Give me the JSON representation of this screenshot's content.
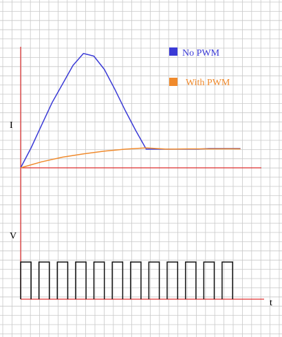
{
  "chart_data": {
    "type": "line",
    "title": "",
    "current_axis_label": "I",
    "voltage_axis_label": "V",
    "time_axis_label": "t",
    "grid": true,
    "legend": "top-right",
    "colors": {
      "grid": "#c8c8c8",
      "axis": "#e03030",
      "no_pwm": "#3a3ad6",
      "with_pwm": "#f08a2c",
      "pulse": "#111111"
    },
    "current_series": [
      {
        "name": "No PWM",
        "points": [
          [
            0,
            0
          ],
          [
            1,
            1.5
          ],
          [
            2,
            3.2
          ],
          [
            3,
            4.9
          ],
          [
            4,
            6.3
          ],
          [
            5,
            7.7
          ],
          [
            6,
            8.6
          ],
          [
            7,
            8.4
          ],
          [
            8,
            7.4
          ],
          [
            9,
            5.9
          ],
          [
            10,
            4.3
          ],
          [
            11,
            2.8
          ],
          [
            12,
            1.4
          ],
          [
            13,
            1.4
          ],
          [
            14,
            1.4
          ],
          [
            15,
            1.4
          ],
          [
            16,
            1.4
          ],
          [
            17,
            1.4
          ],
          [
            18,
            1.45
          ],
          [
            19,
            1.45
          ],
          [
            20,
            1.45
          ],
          [
            21,
            1.45
          ]
        ]
      },
      {
        "name": "With PWM",
        "points": [
          [
            0,
            0
          ],
          [
            2,
            0.45
          ],
          [
            4,
            0.8
          ],
          [
            6,
            1.05
          ],
          [
            8,
            1.25
          ],
          [
            10,
            1.4
          ],
          [
            12,
            1.5
          ],
          [
            13,
            1.45
          ],
          [
            14,
            1.4
          ],
          [
            16,
            1.42
          ],
          [
            18,
            1.42
          ],
          [
            20,
            1.43
          ],
          [
            21,
            1.42
          ]
        ]
      }
    ],
    "voltage_pulses": {
      "on": [
        [
          0,
          1
        ],
        [
          1.75,
          2.75
        ],
        [
          3.5,
          4.5
        ],
        [
          5.25,
          6.25
        ],
        [
          7,
          8
        ],
        [
          8.75,
          9.75
        ],
        [
          10.5,
          11.5
        ],
        [
          12.25,
          13.25
        ],
        [
          14,
          15
        ],
        [
          15.75,
          16.75
        ],
        [
          17.5,
          18.5
        ],
        [
          19.25,
          20.25
        ]
      ],
      "level": 1
    },
    "xlim": [
      0,
      23
    ],
    "current_ylim": [
      0,
      9
    ],
    "voltage_ylim": [
      0,
      1.6
    ]
  }
}
